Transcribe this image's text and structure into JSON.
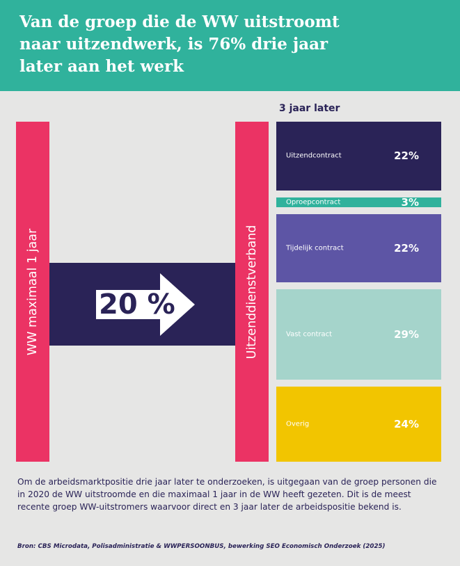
{
  "title": "Van de groep die de WW uitstroomt\nnaar uitzendwerk, is 76% drie jaar\nlater aan het werk",
  "chart_data": {
    "type": "bar",
    "origin_label": "WW maximaal 1 jaar",
    "destination_label": "Uitzenddienstverband",
    "flow": {
      "value": 20,
      "display": "20 %"
    },
    "stack_header": "3 jaar later",
    "categories": [
      "Uitzendcontract",
      "Oproepcontract",
      "Tijdelijk contract",
      "Vast contract",
      "Overig"
    ],
    "values": [
      22,
      3,
      22,
      29,
      24
    ],
    "value_labels": [
      "22%",
      "3%",
      "22%",
      "29%",
      "24%"
    ],
    "colors": [
      "#2a2357",
      "#30b29c",
      "#5d55a5",
      "#a5d4cb",
      "#f2c500"
    ]
  },
  "footnote": "Om de arbeidsmarktpositie drie jaar later te onderzoeken, is uitgegaan van de groep personen die in 2020 de WW uitstroomde en die maximaal 1 jaar in de WW heeft gezeten. Dit is de meest recente groep WW-uitstromers waarvoor direct en 3 jaar later de arbeidspositie bekend is.",
  "source": "Bron: CBS Microdata, Polisadministratie & WWPERSOONBUS, bewerking SEO Economisch Onderzoek (2025)"
}
